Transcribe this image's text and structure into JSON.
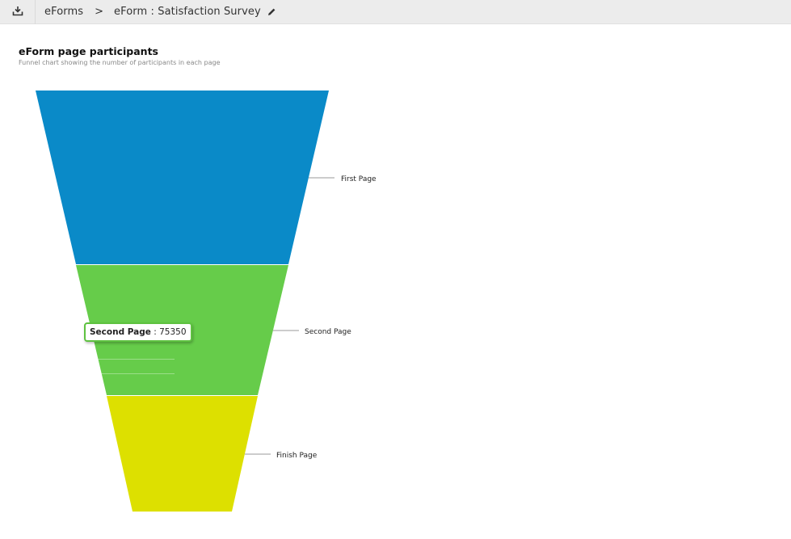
{
  "breadcrumb": {
    "root_label": "eForms",
    "separator": ">",
    "current_label": "eForm : Satisfaction Survey"
  },
  "icons": {
    "download": "download-icon",
    "edit": "pencil-icon"
  },
  "chart": {
    "title": "eForm page participants",
    "subtitle": "Funnel chart showing the number of participants in each page"
  },
  "tooltip": {
    "label": "Second Page",
    "separator": " : ",
    "value": "75350"
  },
  "chart_data": {
    "type": "funnel",
    "title": "eForm page participants",
    "subtitle": "Funnel chart showing the number of participants in each page",
    "categories": [
      "First Page",
      "Second Page",
      "Finish Page"
    ],
    "values": [
      null,
      75350,
      null
    ],
    "colors": [
      "#0a8ac8",
      "#66cc4a",
      "#dde000"
    ],
    "legend": "none"
  }
}
